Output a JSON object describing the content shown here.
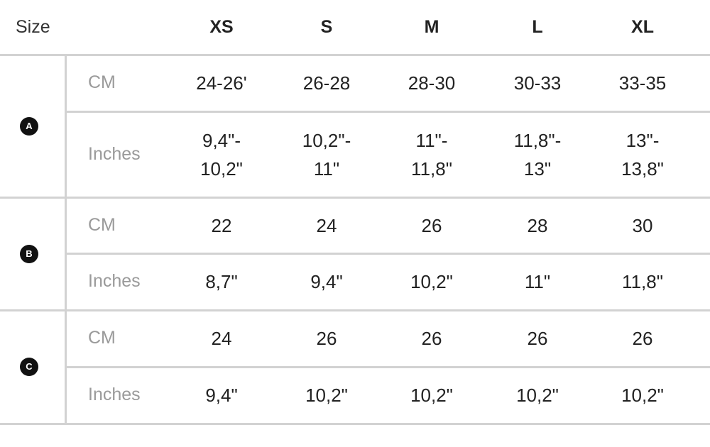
{
  "header": {
    "label": "Size",
    "sizes": [
      "XS",
      "S",
      "M",
      "L",
      "XL"
    ]
  },
  "groups": [
    {
      "badge": "A",
      "rows": [
        {
          "unit": "CM",
          "values": [
            "24-26'",
            "26-28",
            "28-30",
            "30-33",
            "33-35"
          ]
        },
        {
          "unit": "Inches",
          "values": [
            "9,4\"-\n10,2\"",
            "10,2\"-\n11\"",
            "11\"-\n11,8\"",
            "11,8\"-\n13\"",
            "13\"-\n13,8\""
          ]
        }
      ]
    },
    {
      "badge": "B",
      "rows": [
        {
          "unit": "CM",
          "values": [
            "22",
            "24",
            "26",
            "28",
            "30"
          ]
        },
        {
          "unit": "Inches",
          "values": [
            "8,7\"",
            "9,4\"",
            "10,2\"",
            "11\"",
            "11,8\""
          ]
        }
      ]
    },
    {
      "badge": "C",
      "rows": [
        {
          "unit": "CM",
          "values": [
            "24",
            "26",
            "26",
            "26",
            "26"
          ]
        },
        {
          "unit": "Inches",
          "values": [
            "9,4\"",
            "10,2\"",
            "10,2\"",
            "10,2\"",
            "10,2\""
          ]
        }
      ]
    }
  ]
}
